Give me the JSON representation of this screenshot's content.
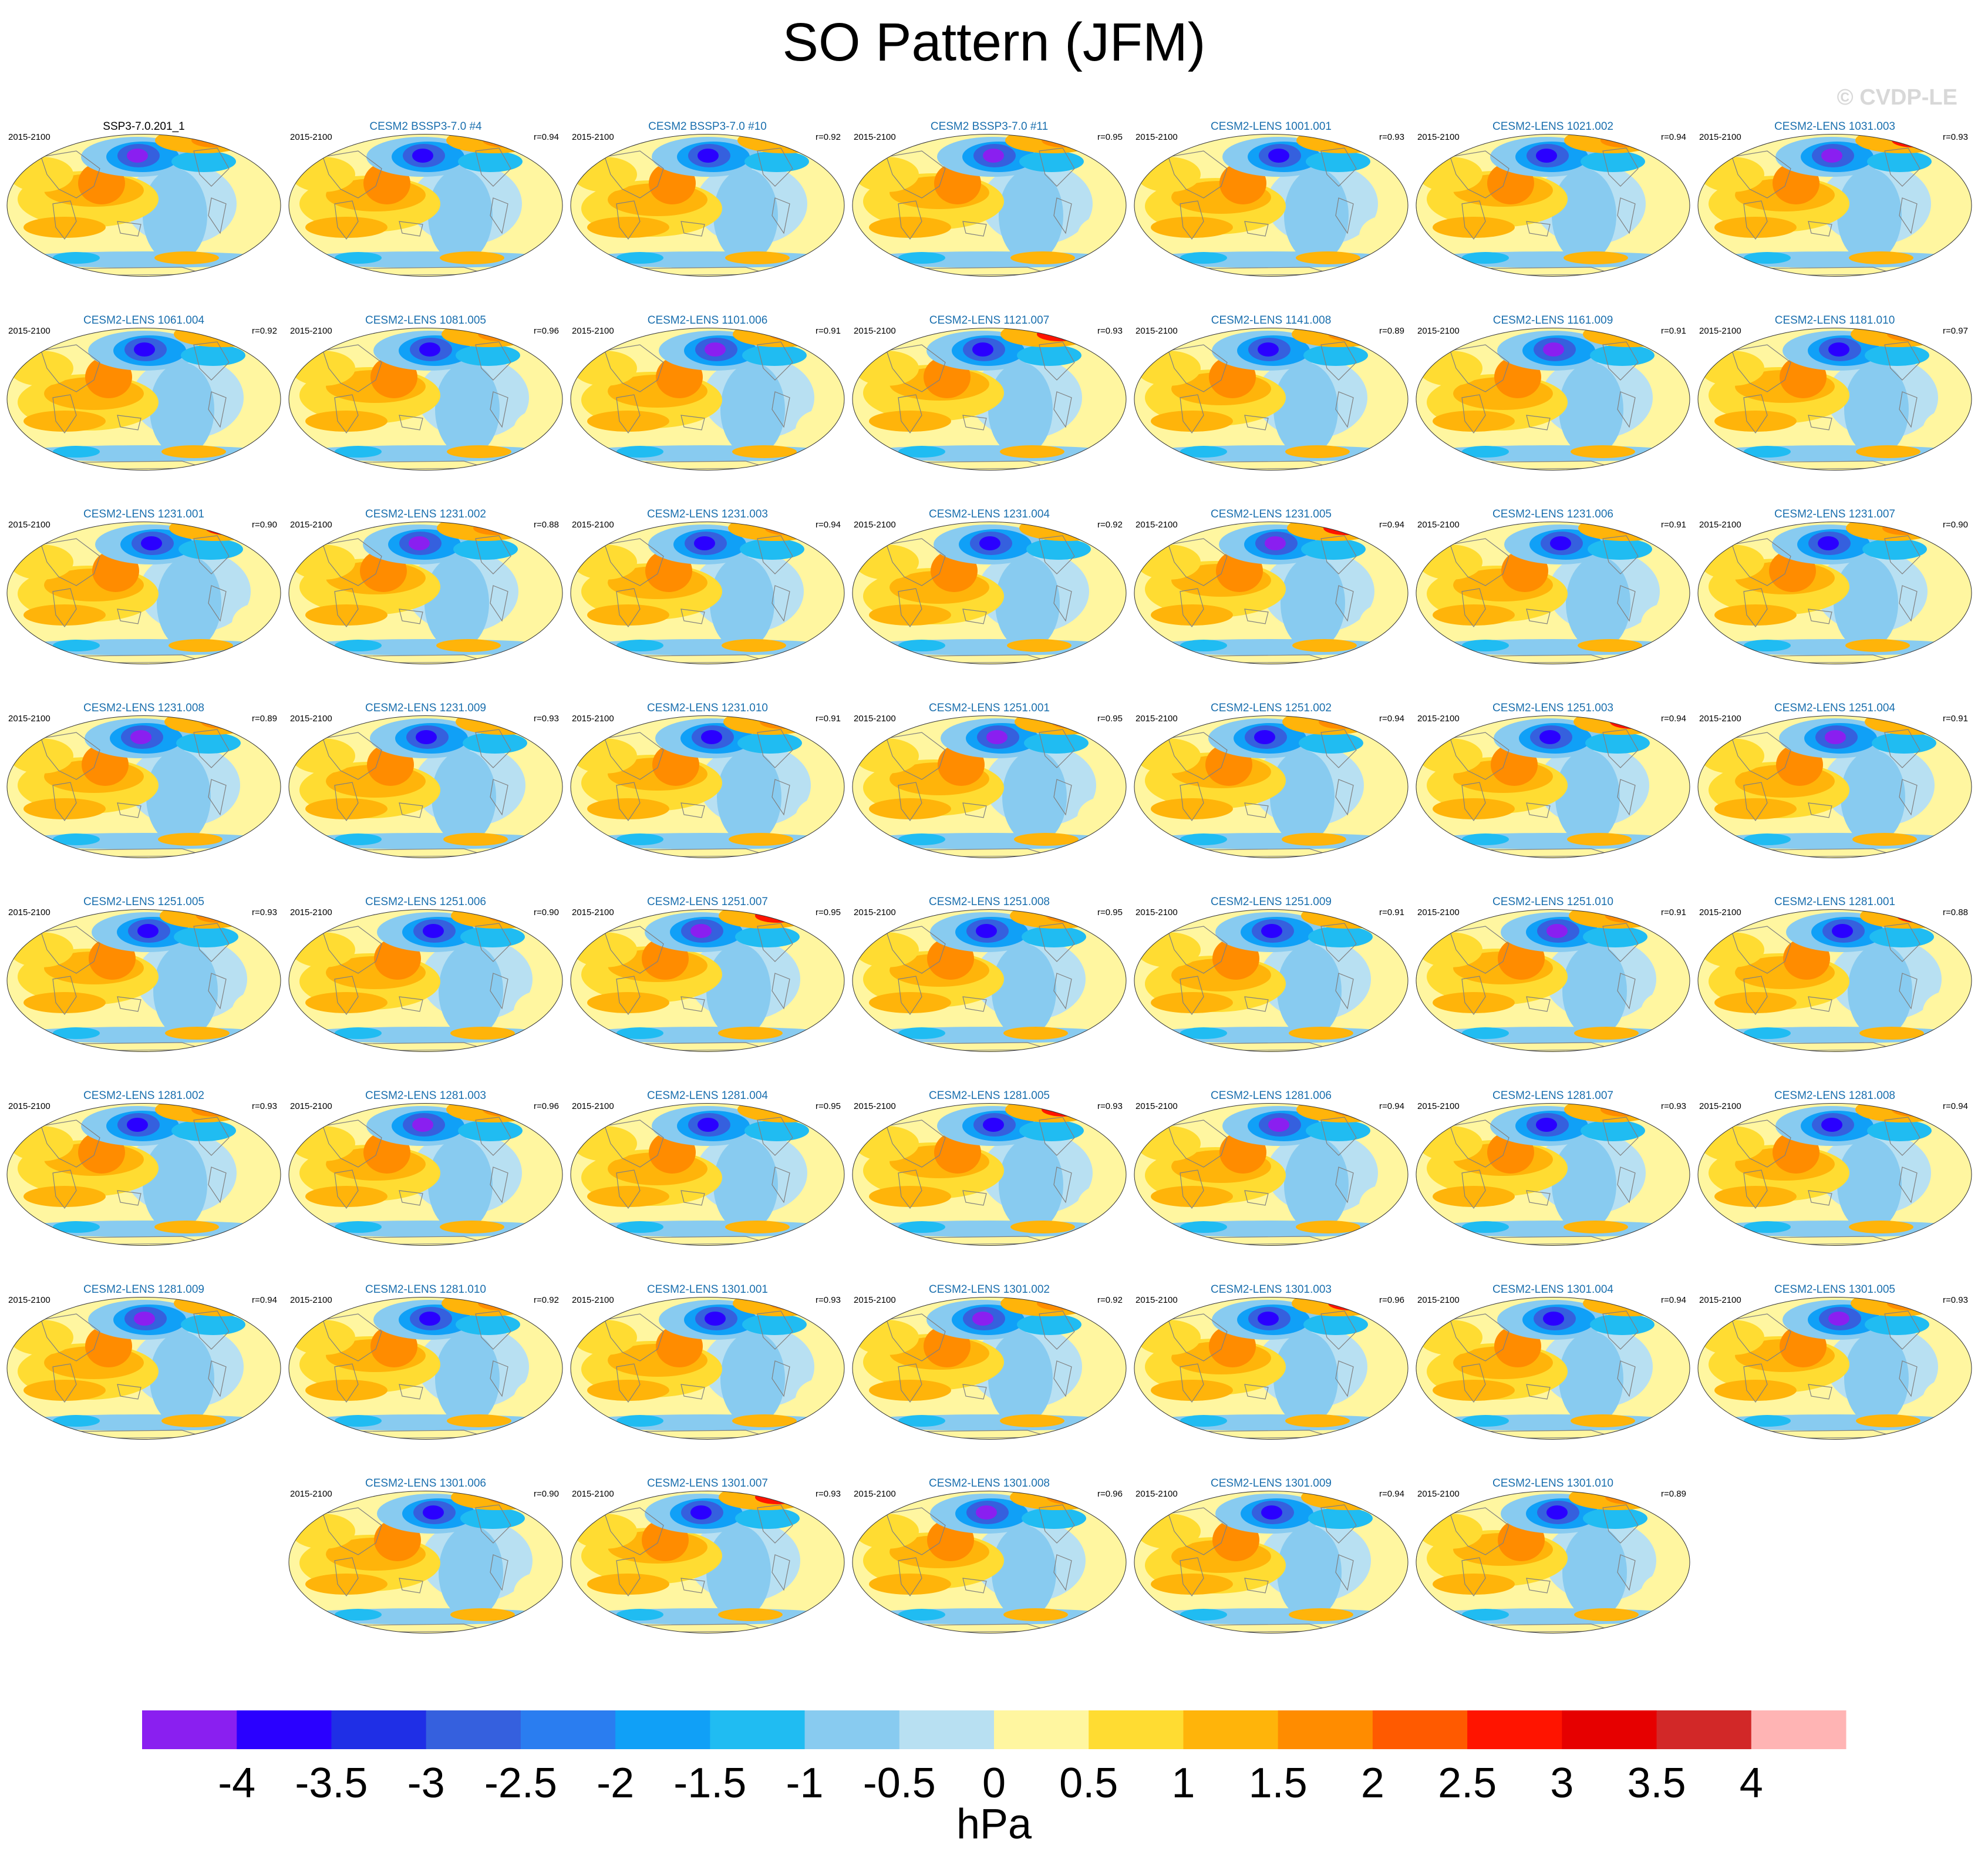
{
  "title": "SO Pattern (JFM)",
  "watermark": "© CVDP-LE",
  "panel_period": "2015-2100",
  "panels": [
    {
      "name": "SSP3-7.0.201_1",
      "r": ""
    },
    {
      "name": "CESM2 BSSP3-7.0 #4",
      "r": "r=0.94"
    },
    {
      "name": "CESM2 BSSP3-7.0 #10",
      "r": "r=0.92"
    },
    {
      "name": "CESM2 BSSP3-7.0 #11",
      "r": "r=0.95"
    },
    {
      "name": "CESM2-LENS 1001.001",
      "r": "r=0.93"
    },
    {
      "name": "CESM2-LENS 1021.002",
      "r": "r=0.94"
    },
    {
      "name": "CESM2-LENS 1031.003",
      "r": "r=0.93"
    },
    {
      "name": "CESM2-LENS 1061.004",
      "r": "r=0.92"
    },
    {
      "name": "CESM2-LENS 1081.005",
      "r": "r=0.96"
    },
    {
      "name": "CESM2-LENS 1101.006",
      "r": "r=0.91"
    },
    {
      "name": "CESM2-LENS 1121.007",
      "r": "r=0.93"
    },
    {
      "name": "CESM2-LENS 1141.008",
      "r": "r=0.89"
    },
    {
      "name": "CESM2-LENS 1161.009",
      "r": "r=0.91"
    },
    {
      "name": "CESM2-LENS 1181.010",
      "r": "r=0.97"
    },
    {
      "name": "CESM2-LENS 1231.001",
      "r": "r=0.90"
    },
    {
      "name": "CESM2-LENS 1231.002",
      "r": "r=0.88"
    },
    {
      "name": "CESM2-LENS 1231.003",
      "r": "r=0.94"
    },
    {
      "name": "CESM2-LENS 1231.004",
      "r": "r=0.92"
    },
    {
      "name": "CESM2-LENS 1231.005",
      "r": "r=0.94"
    },
    {
      "name": "CESM2-LENS 1231.006",
      "r": "r=0.91"
    },
    {
      "name": "CESM2-LENS 1231.007",
      "r": "r=0.90"
    },
    {
      "name": "CESM2-LENS 1231.008",
      "r": "r=0.89"
    },
    {
      "name": "CESM2-LENS 1231.009",
      "r": "r=0.93"
    },
    {
      "name": "CESM2-LENS 1231.010",
      "r": "r=0.91"
    },
    {
      "name": "CESM2-LENS 1251.001",
      "r": "r=0.95"
    },
    {
      "name": "CESM2-LENS 1251.002",
      "r": "r=0.94"
    },
    {
      "name": "CESM2-LENS 1251.003",
      "r": "r=0.94"
    },
    {
      "name": "CESM2-LENS 1251.004",
      "r": "r=0.91"
    },
    {
      "name": "CESM2-LENS 1251.005",
      "r": "r=0.93"
    },
    {
      "name": "CESM2-LENS 1251.006",
      "r": "r=0.90"
    },
    {
      "name": "CESM2-LENS 1251.007",
      "r": "r=0.95"
    },
    {
      "name": "CESM2-LENS 1251.008",
      "r": "r=0.95"
    },
    {
      "name": "CESM2-LENS 1251.009",
      "r": "r=0.91"
    },
    {
      "name": "CESM2-LENS 1251.010",
      "r": "r=0.91"
    },
    {
      "name": "CESM2-LENS 1281.001",
      "r": "r=0.88"
    },
    {
      "name": "CESM2-LENS 1281.002",
      "r": "r=0.93"
    },
    {
      "name": "CESM2-LENS 1281.003",
      "r": "r=0.96"
    },
    {
      "name": "CESM2-LENS 1281.004",
      "r": "r=0.95"
    },
    {
      "name": "CESM2-LENS 1281.005",
      "r": "r=0.93"
    },
    {
      "name": "CESM2-LENS 1281.006",
      "r": "r=0.94"
    },
    {
      "name": "CESM2-LENS 1281.007",
      "r": "r=0.93"
    },
    {
      "name": "CESM2-LENS 1281.008",
      "r": "r=0.94"
    },
    {
      "name": "CESM2-LENS 1281.009",
      "r": "r=0.94"
    },
    {
      "name": "CESM2-LENS 1281.010",
      "r": "r=0.92"
    },
    {
      "name": "CESM2-LENS 1301.001",
      "r": "r=0.93"
    },
    {
      "name": "CESM2-LENS 1301.002",
      "r": "r=0.92"
    },
    {
      "name": "CESM2-LENS 1301.003",
      "r": "r=0.96"
    },
    {
      "name": "CESM2-LENS 1301.004",
      "r": "r=0.94"
    },
    {
      "name": "CESM2-LENS 1301.005",
      "r": "r=0.93"
    },
    {
      "name": "CESM2-LENS 1301.006",
      "r": "r=0.90"
    },
    {
      "name": "CESM2-LENS 1301.007",
      "r": "r=0.93"
    },
    {
      "name": "CESM2-LENS 1301.008",
      "r": "r=0.96"
    },
    {
      "name": "CESM2-LENS 1301.009",
      "r": "r=0.94"
    },
    {
      "name": "CESM2-LENS 1301.010",
      "r": "r=0.89"
    }
  ],
  "chart_data": {
    "type": "heatmap",
    "title": "SO Pattern (JFM)",
    "colorbar": {
      "unit": "hPa",
      "levels": [
        -4,
        -3.5,
        -3,
        -2.5,
        -2,
        -1.5,
        -1,
        -0.5,
        0,
        0.5,
        1,
        1.5,
        2,
        2.5,
        3,
        3.5,
        4
      ],
      "level_labels": [
        "-4",
        "-3.5",
        "-3",
        "-2.5",
        "-2",
        "-1.5",
        "-1",
        "-0.5",
        "0",
        "0.5",
        "1",
        "1.5",
        "2",
        "2.5",
        "3",
        "3.5",
        "4"
      ],
      "colors": [
        "#8a1ff0",
        "#2a00ff",
        "#1f2fe6",
        "#3560de",
        "#2a7df0",
        "#10a0f7",
        "#20bcf2",
        "#88cbf0",
        "#b8e0f2",
        "#fff6a0",
        "#ffdc32",
        "#ffb40a",
        "#ff8c00",
        "#ff5a00",
        "#ff1400",
        "#e60000",
        "#d22828",
        "#ffb4b4"
      ]
    }
  }
}
